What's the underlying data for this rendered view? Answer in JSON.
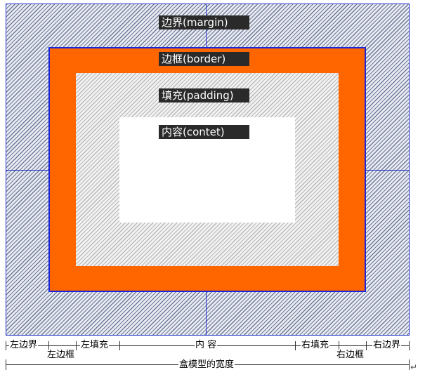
{
  "labels": {
    "margin": "边界(margin)",
    "border": "边框(border)",
    "padding": "填充(padding)",
    "content": "内容(contet)"
  },
  "dimensions": {
    "left_margin": "左边界",
    "left_border": "左边框",
    "left_padding": "左填充",
    "content": "内 容",
    "right_padding": "右填充",
    "right_border": "右边框",
    "right_margin": "右边界",
    "box_width": "盒模型的宽度"
  },
  "colors": {
    "border_fill": "#ff6600",
    "outline": "#2233cc",
    "label_bg": "#2a2a2a"
  },
  "newline_mark": "↵"
}
